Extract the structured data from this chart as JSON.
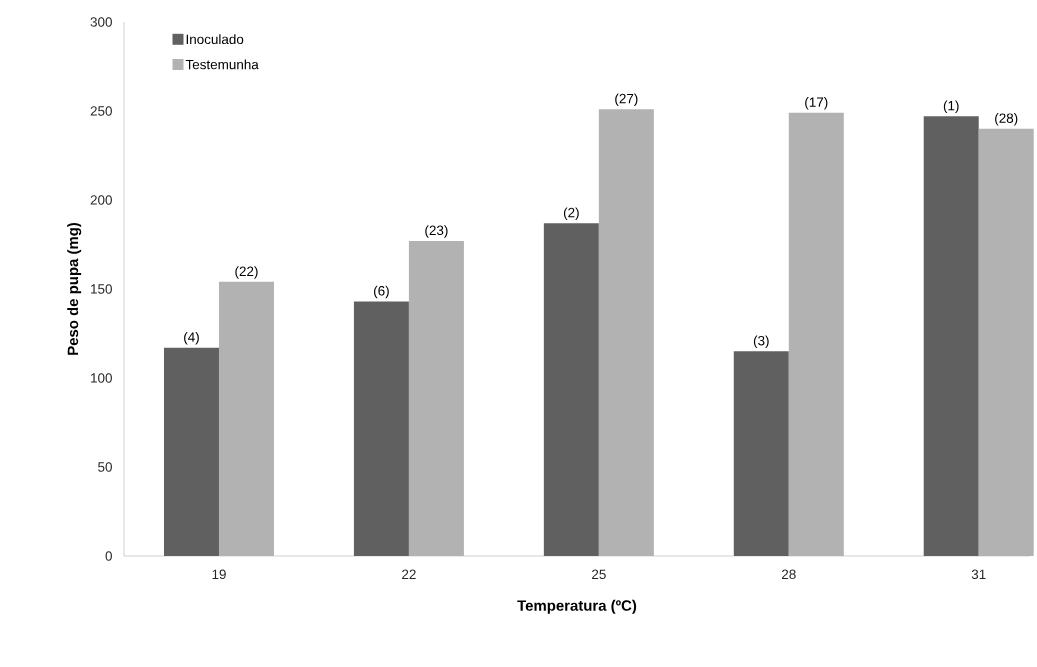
{
  "chart_data": {
    "type": "bar",
    "xlabel": "Temperatura (ºC)",
    "ylabel": "Peso de pupa (mg)",
    "categories": [
      "19",
      "22",
      "25",
      "28",
      "31"
    ],
    "series": [
      {
        "name": "Inoculado",
        "color": "#606060",
        "values": [
          117,
          143,
          187,
          115,
          247
        ]
      },
      {
        "name": "Testemunha",
        "color": "#b2b2b2",
        "values": [
          154,
          177,
          251,
          249,
          240
        ]
      }
    ],
    "annotations": [
      {
        "text": "(4)",
        "x": "19",
        "y": 117
      },
      {
        "text": "(6)",
        "x": "22",
        "y": 143
      },
      {
        "text": "(2)",
        "x": "25",
        "y": 187
      },
      {
        "text": "(3)",
        "x": "28",
        "y": 115
      },
      {
        "text": "(1)",
        "x": "31",
        "y": 247
      },
      {
        "text": "(22)",
        "x": "19",
        "y": 154
      },
      {
        "text": "(23)",
        "x": "22",
        "y": 177
      },
      {
        "text": "(27)",
        "x": "25",
        "y": 251
      },
      {
        "text": "(17)",
        "x": "28",
        "y": 249
      },
      {
        "text": "(28)",
        "x": "31",
        "y": 240
      }
    ],
    "ylim": [
      0,
      300
    ],
    "yticks": [
      0,
      50,
      100,
      150,
      200,
      250,
      300
    ],
    "legend": "top left"
  }
}
